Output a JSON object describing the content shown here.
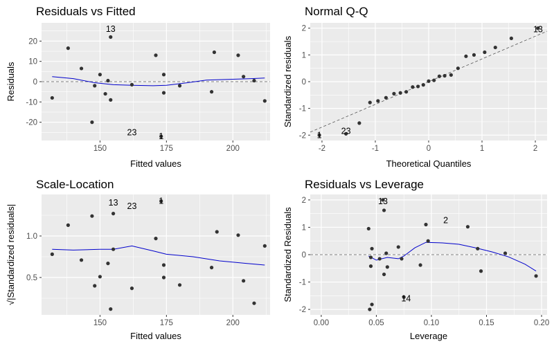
{
  "chart_data": [
    {
      "type": "scatter",
      "title": "Residuals vs Fitted",
      "xlabel": "Fitted values",
      "ylabel": "Residuals",
      "xlim": [
        128,
        214
      ],
      "ylim": [
        -29,
        29
      ],
      "xticks": [
        150,
        175,
        200
      ],
      "yticks": [
        -20,
        -10,
        0,
        10,
        20
      ],
      "refline": {
        "kind": "h",
        "y": 0
      },
      "points": [
        {
          "x": 132,
          "y": -8
        },
        {
          "x": 138,
          "y": 16.5
        },
        {
          "x": 143,
          "y": 6.5
        },
        {
          "x": 147,
          "y": -20
        },
        {
          "x": 148,
          "y": -2
        },
        {
          "x": 150,
          "y": 3.5
        },
        {
          "x": 152,
          "y": -6
        },
        {
          "x": 153,
          "y": 0.5
        },
        {
          "x": 154,
          "y": 22
        },
        {
          "x": 154,
          "y": -9
        },
        {
          "x": 162,
          "y": -1.5
        },
        {
          "x": 171,
          "y": 13
        },
        {
          "x": 173,
          "y": -27
        },
        {
          "x": 174,
          "y": 3.5
        },
        {
          "x": 174,
          "y": -5.5
        },
        {
          "x": 180,
          "y": -2
        },
        {
          "x": 192,
          "y": -5
        },
        {
          "x": 193,
          "y": 14.5
        },
        {
          "x": 202,
          "y": 13
        },
        {
          "x": 204,
          "y": 2.5
        },
        {
          "x": 208,
          "y": 0.5
        },
        {
          "x": 212,
          "y": -9.5
        }
      ],
      "smooth": [
        [
          132,
          2.5
        ],
        [
          140,
          1.5
        ],
        [
          148,
          -0.5
        ],
        [
          155,
          -1.5
        ],
        [
          162,
          -1.8
        ],
        [
          170,
          -2
        ],
        [
          175,
          -1.8
        ],
        [
          183,
          -0.5
        ],
        [
          190,
          0.8
        ],
        [
          200,
          1.2
        ],
        [
          207,
          1.5
        ],
        [
          212,
          1.8
        ]
      ],
      "labels": [
        {
          "text": "13",
          "x": 154,
          "y": 26
        },
        {
          "text": "23",
          "x": 162,
          "y": -25
        },
        {
          "text": "1",
          "x": 173,
          "y": -27
        }
      ]
    },
    {
      "type": "scatter",
      "title": "Normal Q-Q",
      "xlabel": "Theoretical Quantiles",
      "ylabel": "Standardized residuals",
      "xlim": [
        -2.22,
        2.22
      ],
      "ylim": [
        -2.2,
        2.2
      ],
      "xticks": [
        -2,
        -1,
        0,
        1,
        2
      ],
      "yticks": [
        -2,
        -1,
        0,
        1,
        2
      ],
      "refline": {
        "kind": "line",
        "slope": 0.85,
        "intercept": 0
      },
      "points": [
        {
          "x": -2.05,
          "y": -2.0
        },
        {
          "x": -1.55,
          "y": -1.95
        },
        {
          "x": -1.3,
          "y": -1.55
        },
        {
          "x": -1.1,
          "y": -0.78
        },
        {
          "x": -0.95,
          "y": -0.72
        },
        {
          "x": -0.8,
          "y": -0.6
        },
        {
          "x": -0.65,
          "y": -0.45
        },
        {
          "x": -0.53,
          "y": -0.42
        },
        {
          "x": -0.42,
          "y": -0.38
        },
        {
          "x": -0.3,
          "y": -0.2
        },
        {
          "x": -0.2,
          "y": -0.18
        },
        {
          "x": -0.1,
          "y": -0.12
        },
        {
          "x": 0.0,
          "y": 0.02
        },
        {
          "x": 0.1,
          "y": 0.05
        },
        {
          "x": 0.2,
          "y": 0.2
        },
        {
          "x": 0.3,
          "y": 0.22
        },
        {
          "x": 0.42,
          "y": 0.25
        },
        {
          "x": 0.55,
          "y": 0.5
        },
        {
          "x": 0.7,
          "y": 0.95
        },
        {
          "x": 0.85,
          "y": 1.0
        },
        {
          "x": 1.05,
          "y": 1.1
        },
        {
          "x": 1.25,
          "y": 1.28
        },
        {
          "x": 1.55,
          "y": 1.62
        },
        {
          "x": 2.05,
          "y": 2.0
        }
      ],
      "labels": [
        {
          "text": "13",
          "x": 2.05,
          "y": 1.95
        },
        {
          "text": "23",
          "x": -1.55,
          "y": -1.85
        },
        {
          "text": "1",
          "x": -2.05,
          "y": -2.0
        }
      ]
    },
    {
      "type": "scatter",
      "title": "Scale-Location",
      "xlabel": "Fitted values",
      "ylabel": "√|Standardized residuals|",
      "xlim": [
        128,
        214
      ],
      "ylim": [
        0.05,
        1.5
      ],
      "xticks": [
        150,
        175,
        200
      ],
      "yticks": [
        0.5,
        1.0
      ],
      "yticklabels": [
        "0.5",
        "1.0"
      ],
      "points": [
        {
          "x": 132,
          "y": 0.78
        },
        {
          "x": 138,
          "y": 1.13
        },
        {
          "x": 143,
          "y": 0.71
        },
        {
          "x": 147,
          "y": 1.24
        },
        {
          "x": 148,
          "y": 0.4
        },
        {
          "x": 150,
          "y": 0.51
        },
        {
          "x": 153,
          "y": 0.67
        },
        {
          "x": 154,
          "y": 0.12
        },
        {
          "x": 155,
          "y": 1.27
        },
        {
          "x": 155,
          "y": 0.84
        },
        {
          "x": 162,
          "y": 0.37
        },
        {
          "x": 171,
          "y": 0.97
        },
        {
          "x": 173,
          "y": 1.42
        },
        {
          "x": 174,
          "y": 0.65
        },
        {
          "x": 174,
          "y": 0.5
        },
        {
          "x": 180,
          "y": 0.41
        },
        {
          "x": 192,
          "y": 0.62
        },
        {
          "x": 194,
          "y": 1.05
        },
        {
          "x": 202,
          "y": 1.01
        },
        {
          "x": 204,
          "y": 0.46
        },
        {
          "x": 208,
          "y": 0.19
        },
        {
          "x": 212,
          "y": 0.88
        }
      ],
      "smooth": [
        [
          132,
          0.84
        ],
        [
          140,
          0.83
        ],
        [
          150,
          0.84
        ],
        [
          155,
          0.84
        ],
        [
          162,
          0.88
        ],
        [
          170,
          0.82
        ],
        [
          175,
          0.78
        ],
        [
          185,
          0.75
        ],
        [
          195,
          0.7
        ],
        [
          205,
          0.67
        ],
        [
          212,
          0.65
        ]
      ],
      "labels": [
        {
          "text": "13",
          "x": 155,
          "y": 1.4
        },
        {
          "text": "23",
          "x": 162,
          "y": 1.36
        },
        {
          "text": "1",
          "x": 173,
          "y": 1.42
        }
      ]
    },
    {
      "type": "scatter",
      "title": "Residuals vs Leverage",
      "xlabel": "Leverage",
      "ylabel": "Standardized Residuals",
      "xlim": [
        -0.01,
        0.205
      ],
      "ylim": [
        -2.2,
        2.2
      ],
      "xticks": [
        0.0,
        0.05,
        0.1,
        0.15,
        0.2
      ],
      "xticklabels": [
        "0.00",
        "0.05",
        "0.10",
        "0.15",
        "0.20"
      ],
      "yticks": [
        -2,
        -1,
        0,
        1,
        2
      ],
      "refline": {
        "kind": "h",
        "y": 0
      },
      "points": [
        {
          "x": 0.043,
          "y": 0.95
        },
        {
          "x": 0.044,
          "y": -2.0
        },
        {
          "x": 0.045,
          "y": -0.1
        },
        {
          "x": 0.045,
          "y": -0.42
        },
        {
          "x": 0.046,
          "y": 0.22
        },
        {
          "x": 0.046,
          "y": -1.82
        },
        {
          "x": 0.053,
          "y": -0.15
        },
        {
          "x": 0.056,
          "y": 2.0
        },
        {
          "x": 0.057,
          "y": 1.62
        },
        {
          "x": 0.057,
          "y": -0.72
        },
        {
          "x": 0.059,
          "y": 0.05
        },
        {
          "x": 0.06,
          "y": -0.45
        },
        {
          "x": 0.07,
          "y": 0.28
        },
        {
          "x": 0.073,
          "y": -0.15
        },
        {
          "x": 0.075,
          "y": -1.55
        },
        {
          "x": 0.09,
          "y": -0.38
        },
        {
          "x": 0.095,
          "y": 1.1
        },
        {
          "x": 0.097,
          "y": 0.5
        },
        {
          "x": 0.133,
          "y": 1.02
        },
        {
          "x": 0.142,
          "y": 0.22
        },
        {
          "x": 0.145,
          "y": -0.6
        },
        {
          "x": 0.167,
          "y": 0.05
        },
        {
          "x": 0.195,
          "y": -0.78
        }
      ],
      "smooth": [
        [
          0.043,
          -0.05
        ],
        [
          0.05,
          -0.2
        ],
        [
          0.06,
          -0.1
        ],
        [
          0.07,
          -0.15
        ],
        [
          0.075,
          -0.05
        ],
        [
          0.085,
          0.25
        ],
        [
          0.095,
          0.45
        ],
        [
          0.11,
          0.43
        ],
        [
          0.125,
          0.38
        ],
        [
          0.14,
          0.25
        ],
        [
          0.155,
          0.1
        ],
        [
          0.17,
          -0.08
        ],
        [
          0.185,
          -0.35
        ],
        [
          0.195,
          -0.6
        ]
      ],
      "labels": [
        {
          "text": "13",
          "x": 0.056,
          "y": 1.95
        },
        {
          "text": "2",
          "x": 0.113,
          "y": 1.25
        },
        {
          "text": "14",
          "x": 0.077,
          "y": -1.6
        }
      ]
    }
  ]
}
